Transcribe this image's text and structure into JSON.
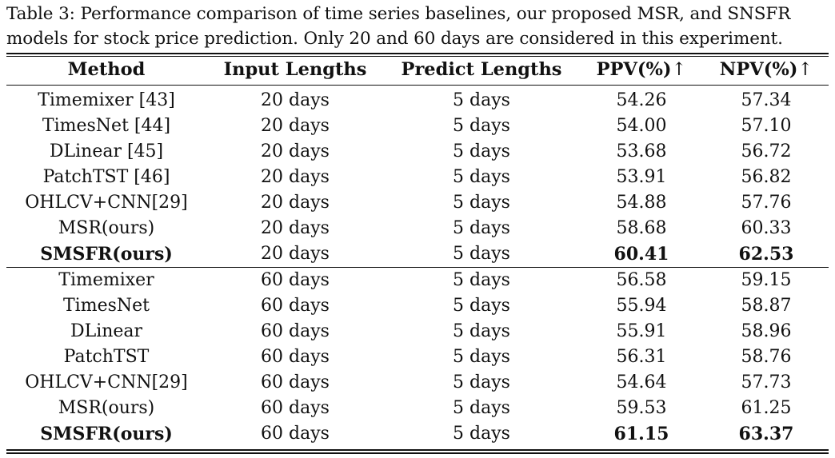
{
  "caption": {
    "line1": "Table 3: Performance comparison of time series baselines, our proposed MSR, and SNSFR",
    "line2": "models for stock price prediction. Only 20 and 60 days are considered in this experiment."
  },
  "table": {
    "headers": {
      "method": "Method",
      "input": "Input Lengths",
      "predict": "Predict Lengths",
      "ppv": "PPV(%)",
      "npv": "NPV(%)",
      "arrow": "↑"
    },
    "groups": [
      {
        "rows": [
          {
            "method": "Timemixer [43]",
            "input": "20 days",
            "predict": "5 days",
            "ppv": "54.26",
            "npv": "57.34"
          },
          {
            "method": "TimesNet [44]",
            "input": "20 days",
            "predict": "5 days",
            "ppv": "54.00",
            "npv": "57.10"
          },
          {
            "method": "DLinear [45]",
            "input": "20 days",
            "predict": "5 days",
            "ppv": "53.68",
            "npv": "56.72"
          },
          {
            "method": "PatchTST [46]",
            "input": "20 days",
            "predict": "5 days",
            "ppv": "53.91",
            "npv": "56.82"
          },
          {
            "method": "OHLCV+CNN[29]",
            "input": "20 days",
            "predict": "5 days",
            "ppv": "54.88",
            "npv": "57.76"
          },
          {
            "method": "MSR(ours)",
            "input": "20 days",
            "predict": "5 days",
            "ppv": "58.68",
            "npv": "60.33"
          },
          {
            "method": "SMSFR(ours)",
            "input": "20 days",
            "predict": "5 days",
            "ppv": "60.41",
            "npv": "62.53"
          }
        ]
      },
      {
        "rows": [
          {
            "method": "Timemixer",
            "input": "60 days",
            "predict": "5 days",
            "ppv": "56.58",
            "npv": "59.15"
          },
          {
            "method": "TimesNet",
            "input": "60 days",
            "predict": "5 days",
            "ppv": "55.94",
            "npv": "58.87"
          },
          {
            "method": "DLinear",
            "input": "60 days",
            "predict": "5 days",
            "ppv": "55.91",
            "npv": "58.96"
          },
          {
            "method": "PatchTST",
            "input": "60 days",
            "predict": "5 days",
            "ppv": "56.31",
            "npv": "58.76"
          },
          {
            "method": "OHLCV+CNN[29]",
            "input": "60 days",
            "predict": "5 days",
            "ppv": "54.64",
            "npv": "57.73"
          },
          {
            "method": "MSR(ours)",
            "input": "60 days",
            "predict": "5 days",
            "ppv": "59.53",
            "npv": "61.25"
          },
          {
            "method": "SMSFR(ours)",
            "input": "60 days",
            "predict": "5 days",
            "ppv": "61.15",
            "npv": "63.37"
          }
        ]
      }
    ]
  }
}
